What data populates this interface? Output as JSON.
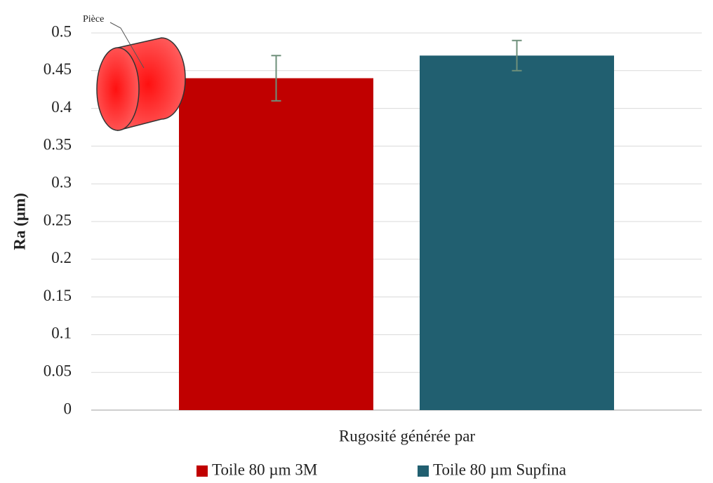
{
  "chart_data": {
    "type": "bar",
    "x_label": "Rugosité générée par",
    "y_label": "Ra (µm)",
    "annotation": "Pièce",
    "categories": [
      null
    ],
    "series": [
      {
        "name": "Toile 80 µm 3M",
        "color": "#c00000",
        "values": [
          0.44
        ],
        "errors": [
          0.03
        ]
      },
      {
        "name": "Toile 80 µm Supfina",
        "color": "#215f70",
        "values": [
          0.47
        ],
        "errors": [
          0.02
        ]
      }
    ],
    "error_color": "#6e8f7a",
    "ylim": [
      0,
      0.5
    ],
    "yticks": [
      0,
      0.05,
      0.1,
      0.15,
      0.2,
      0.25,
      0.3,
      0.35,
      0.4,
      0.45,
      0.5
    ],
    "grid": true,
    "legend": "bottom"
  }
}
